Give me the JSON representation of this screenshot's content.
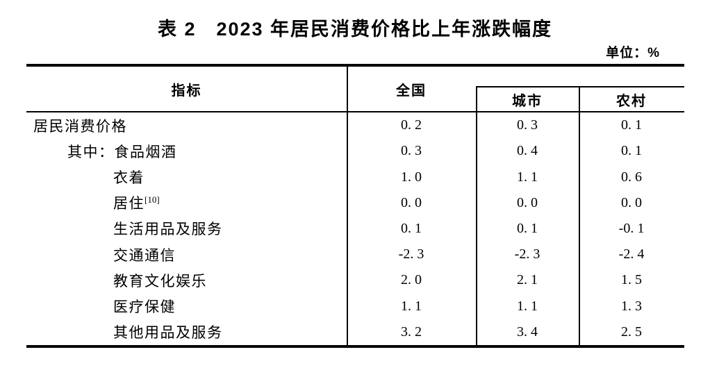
{
  "page": {
    "title": "表 2　2023 年居民消费价格比上年涨跌幅度",
    "unit_label": "单位：%"
  },
  "colors": {
    "text": "#000000",
    "background": "#ffffff",
    "border": "#000000"
  },
  "table": {
    "columns": {
      "indicator": "指标",
      "national": "全国",
      "urban": "城市",
      "rural": "农村"
    },
    "rows": [
      {
        "label": "居民消费价格",
        "national": "0.2",
        "urban": "0.3",
        "rural": "0.1"
      },
      {
        "label": "其中：食品烟酒",
        "national": "0.3",
        "urban": "0.4",
        "rural": "0.1"
      },
      {
        "label": "衣着",
        "national": "1.0",
        "urban": "1.1",
        "rural": "0.6"
      },
      {
        "label": "居住",
        "footnote": "[10]",
        "national": "0.0",
        "urban": "0.0",
        "rural": "0.0"
      },
      {
        "label": "生活用品及服务",
        "national": "0.1",
        "urban": "0.1",
        "rural": "-0.1"
      },
      {
        "label": "交通通信",
        "national": "-2.3",
        "urban": "-2.3",
        "rural": "-2.4"
      },
      {
        "label": "教育文化娱乐",
        "national": "2.0",
        "urban": "2.1",
        "rural": "1.5"
      },
      {
        "label": "医疗保健",
        "national": "1.1",
        "urban": "1.1",
        "rural": "1.3"
      },
      {
        "label": "其他用品及服务",
        "national": "3.2",
        "urban": "3.4",
        "rural": "2.5"
      }
    ]
  }
}
